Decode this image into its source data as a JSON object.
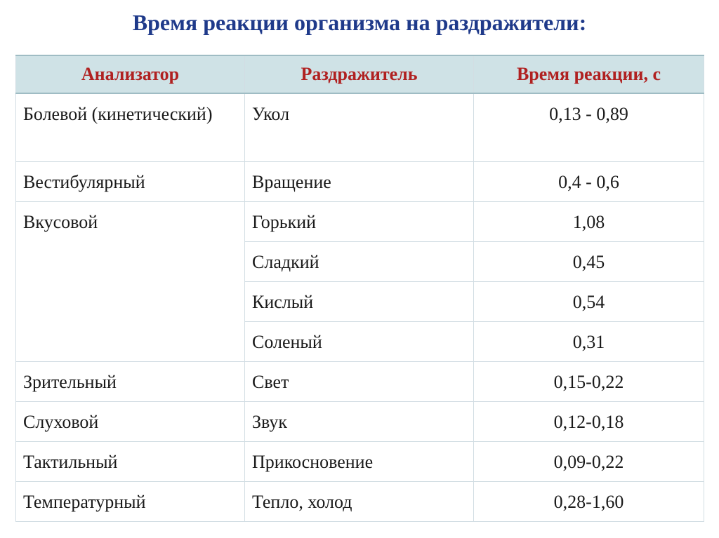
{
  "title": "Время реакции организма на раздражители:",
  "table": {
    "headers": [
      "Анализатор",
      "Раздражитель",
      "Время реакции, с"
    ],
    "rows": [
      {
        "analyzer": "Болевой (кинетический)",
        "stimulus": "Укол",
        "time": "0,13 - 0,89"
      },
      {
        "analyzer": "Вестибулярный",
        "stimulus": "Вращение",
        "time": "0,4 - 0,6"
      },
      {
        "analyzer": "Вкусовой",
        "stimulus": "Горький",
        "time": "1,08"
      },
      {
        "analyzer": "",
        "stimulus": "Сладкий",
        "time": "0,45"
      },
      {
        "analyzer": "",
        "stimulus": "Кислый",
        "time": "0,54"
      },
      {
        "analyzer": "",
        "stimulus": "Соленый",
        "time": "0,31"
      },
      {
        "analyzer": "Зрительный",
        "stimulus": "Свет",
        "time": "0,15-0,22"
      },
      {
        "analyzer": "Слуховой",
        "stimulus": "Звук",
        "time": "0,12-0,18"
      },
      {
        "analyzer": "Тактильный",
        "stimulus": "Прикосновение",
        "time": "0,09-0,22"
      },
      {
        "analyzer": "Температурный",
        "stimulus": "Тепло, холод",
        "time": "0,28-1,60"
      }
    ]
  }
}
